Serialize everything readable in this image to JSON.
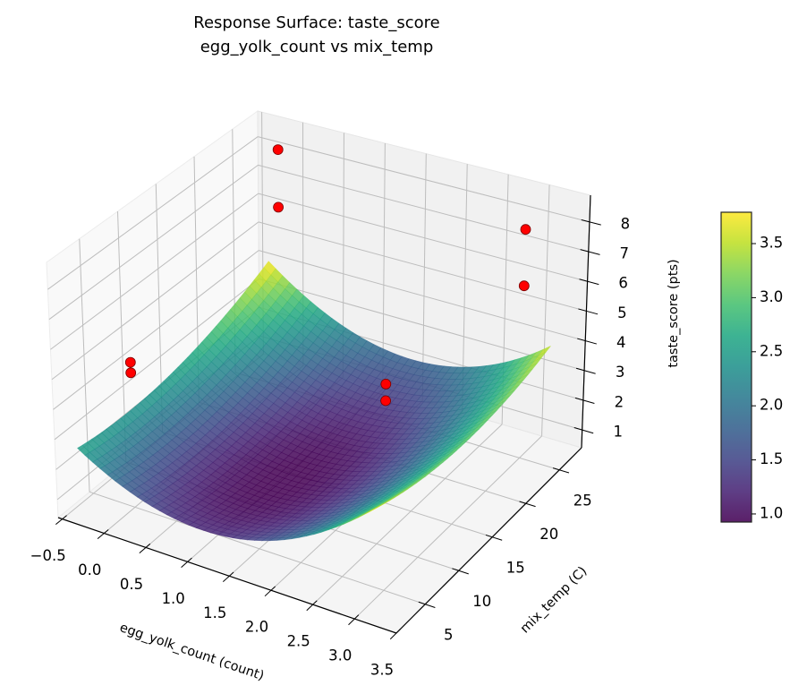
{
  "chart_data": {
    "type": "surface3d",
    "title": "Response Surface: taste_score",
    "subtitle": "egg_yolk_count vs mix_temp",
    "xlabel": "egg_yolk_count (count)",
    "ylabel": "mix_temp (C)",
    "zlabel": "taste_score (pts)",
    "xlim": [
      -0.55,
      3.5
    ],
    "ylim": [
      0.7,
      28.3
    ],
    "zlim": [
      0.4,
      8.9
    ],
    "xticks": [
      -0.5,
      0.0,
      0.5,
      1.0,
      1.5,
      2.0,
      2.5,
      3.0,
      3.5
    ],
    "xtick_labels": [
      "−0.5",
      "0.0",
      "0.5",
      "1.0",
      "1.5",
      "2.0",
      "2.5",
      "3.0",
      "3.5"
    ],
    "yticks": [
      5,
      10,
      15,
      20,
      25
    ],
    "ytick_labels": [
      "5",
      "10",
      "15",
      "20",
      "25"
    ],
    "zticks": [
      1,
      2,
      3,
      4,
      5,
      6,
      7,
      8
    ],
    "ztick_labels": [
      "1",
      "2",
      "3",
      "4",
      "5",
      "6",
      "7",
      "8"
    ],
    "grid": true,
    "surface": {
      "x_range": [
        -0.4,
        3.1
      ],
      "y_range": [
        2,
        28
      ],
      "fit": {
        "z_min": 0.9,
        "x_center": 1.2,
        "y_center": 12,
        "a_xx": 0.62,
        "b_yy": 0.00359,
        "c_xy": -0.0154
      },
      "colormap": "viridis",
      "alpha": 0.85
    },
    "points": [
      {
        "x": 0,
        "y": 25,
        "z": 8.6
      },
      {
        "x": 0,
        "y": 25,
        "z": 6.6
      },
      {
        "x": 0,
        "y": 5,
        "z": 5.25
      },
      {
        "x": 0,
        "y": 5,
        "z": 4.9
      },
      {
        "x": 3,
        "y": 5,
        "z": 7.2
      },
      {
        "x": 3,
        "y": 5,
        "z": 6.65
      },
      {
        "x": 3,
        "y": 25,
        "z": 8.1
      },
      {
        "x": 3,
        "y": 25,
        "z": 6.2
      }
    ],
    "point_color": "#ff0000",
    "colorbar": {
      "range": [
        0.925,
        3.79
      ],
      "ticks": [
        1.0,
        1.5,
        2.0,
        2.5,
        3.0,
        3.5
      ],
      "tick_labels": [
        "1.0",
        "1.5",
        "2.0",
        "2.5",
        "3.0",
        "3.5"
      ]
    }
  }
}
